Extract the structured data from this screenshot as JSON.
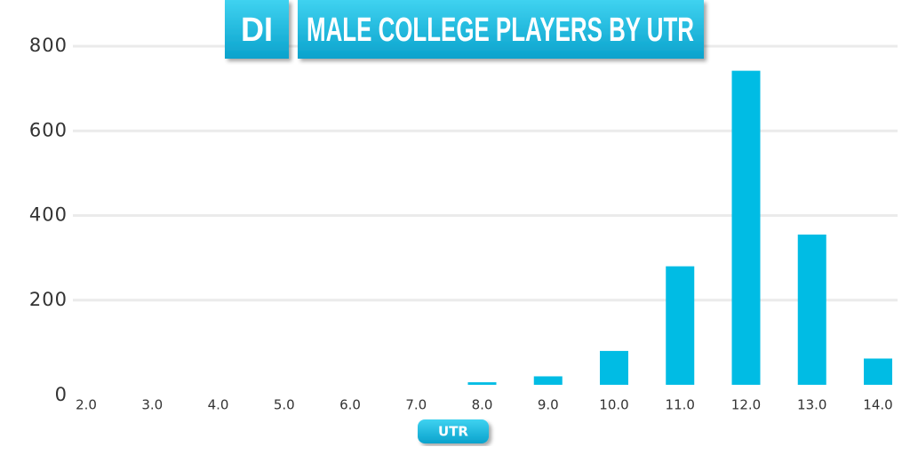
{
  "chart_data": {
    "type": "bar",
    "title_badge": "DI",
    "title": "MALE COLLEGE PLAYERS BY UTR",
    "x_label": "UTR",
    "categories": [
      "2.0",
      "3.0",
      "4.0",
      "5.0",
      "6.0",
      "7.0",
      "8.0",
      "9.0",
      "10.0",
      "11.0",
      "12.0",
      "13.0",
      "14.0"
    ],
    "values": [
      0,
      0,
      0,
      0,
      0,
      0,
      6,
      20,
      80,
      280,
      742,
      355,
      62
    ],
    "color": "#00bce4",
    "ylim": [
      0,
      800
    ],
    "yticks": [
      0,
      200,
      400,
      600,
      800
    ],
    "grid": true
  }
}
